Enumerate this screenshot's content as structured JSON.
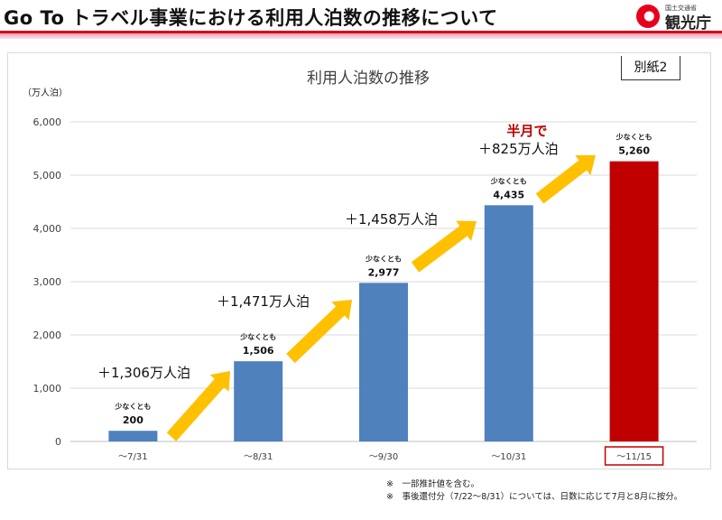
{
  "header": {
    "title": "Go To トラベル事業における利用人泊数の推移について",
    "logo_sub": "国土交通省",
    "logo_main": "観光庁"
  },
  "appendix_label": "別紙2",
  "chart_data": {
    "type": "bar",
    "title": "利用人泊数の推移",
    "ylabel": "（万人泊）",
    "xlabel": "",
    "ylim": [
      0,
      6000
    ],
    "yticks": [
      0,
      1000,
      2000,
      3000,
      4000,
      5000,
      6000
    ],
    "ytick_labels": [
      "0",
      "1,000",
      "2,000",
      "3,000",
      "4,000",
      "5,000",
      "6,000"
    ],
    "grid": true,
    "categories": [
      "～7/31",
      "～8/31",
      "～9/30",
      "～10/31",
      "～11/15"
    ],
    "values": [
      200,
      1506,
      2977,
      4435,
      5260
    ],
    "value_labels": [
      "200",
      "1,506",
      "2,977",
      "4,435",
      "5,260"
    ],
    "value_prefix": "少なくとも",
    "bar_colors": [
      "#4f81bd",
      "#4f81bd",
      "#4f81bd",
      "#4f81bd",
      "#c00000"
    ],
    "highlighted_category": "～11/15",
    "increments": [
      "＋1,306万人泊",
      "＋1,471万人泊",
      "＋1,458万人泊",
      "＋825万人泊"
    ],
    "increment_note": "半月で",
    "arrow_color": "#ffc000"
  },
  "notes": [
    "※　一部推計値を含む。",
    "※　事後還付分（7/22～8/31）については、日数に応じて7月と8月に按分。"
  ]
}
